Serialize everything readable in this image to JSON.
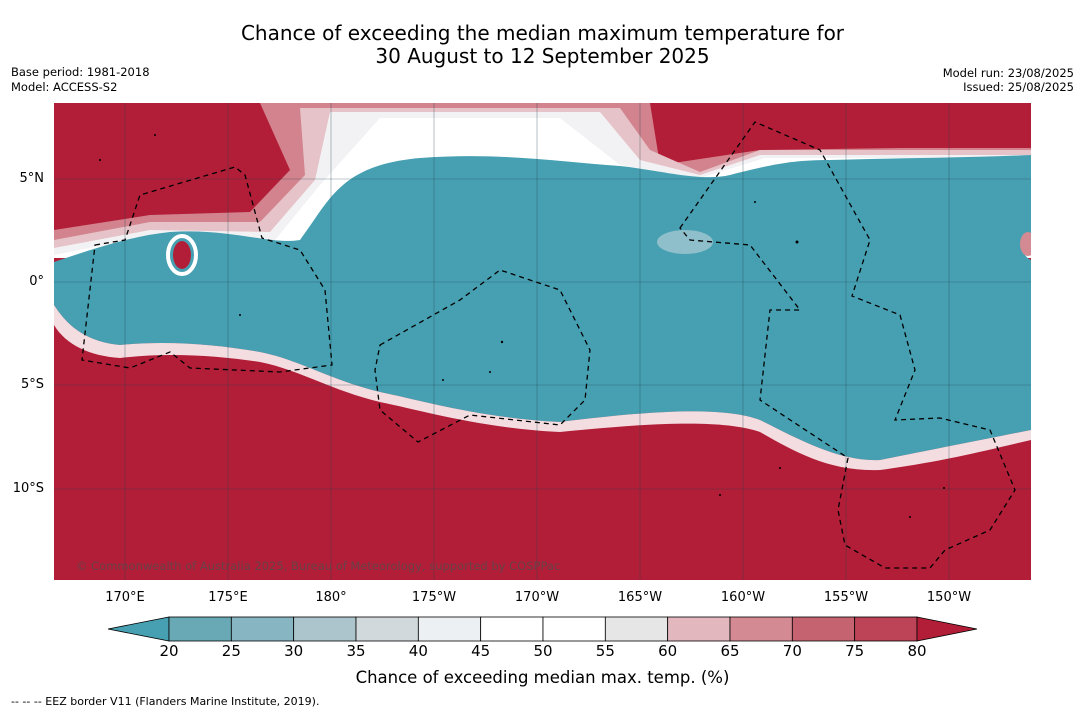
{
  "header": {
    "title_line1": "Chance of exceeding the median maximum temperature for",
    "title_line2": "30 August to 12 September 2025",
    "base_period": "Base period: 1981-2018",
    "model": "Model: ACCESS-S2",
    "model_run": "Model run: 23/08/2025",
    "issued": "Issued: 25/08/2025"
  },
  "map": {
    "lat_labels": [
      "5°N",
      "0°",
      "5°S",
      "10°S"
    ],
    "lon_labels": [
      "170°E",
      "175°E",
      "180°",
      "175°W",
      "170°W",
      "165°W",
      "160°W",
      "155°W",
      "150°W"
    ],
    "copyright": "© Commonwealth of Australia 2025, Bureau of Meteorology, supported by COSPPac",
    "colors": {
      "high": "#b21e37",
      "low": "#47a0b2"
    }
  },
  "colorbar": {
    "label": "Chance of exceeding median max. temp. (%)",
    "ticks": [
      "20",
      "25",
      "30",
      "35",
      "40",
      "45",
      "50",
      "55",
      "60",
      "65",
      "70",
      "75",
      "80"
    ],
    "colors": [
      "#47a0b2",
      "#69a9b6",
      "#87b5c1",
      "#acc5cc",
      "#d1d9dc",
      "#ecf0f2",
      "#ffffff",
      "#ffffff",
      "#e6e6e6",
      "#e2b8be",
      "#d48a93",
      "#c66371",
      "#bc4456",
      "#b21e37"
    ]
  },
  "footnote": "--  --  -- EEZ border V11 (Flanders Marine Institute, 2019)."
}
